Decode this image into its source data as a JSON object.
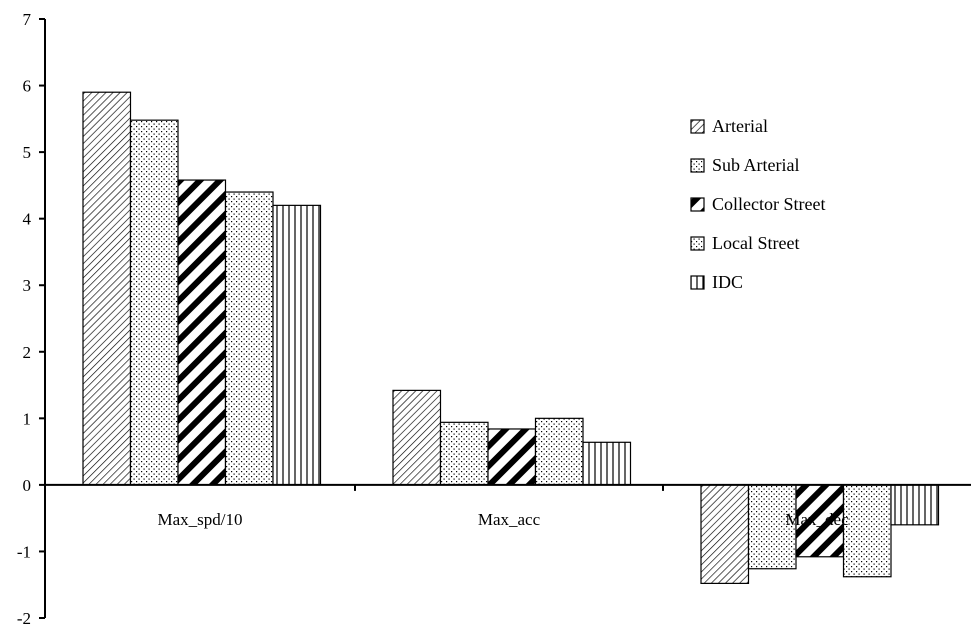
{
  "chart_data": {
    "type": "bar",
    "categories": [
      "Max_spd/10",
      "Max_acc",
      "Max_dec"
    ],
    "series": [
      {
        "name": "Arterial",
        "values": [
          5.9,
          1.42,
          -1.48
        ],
        "pattern": "diag-right"
      },
      {
        "name": "Sub Arterial",
        "values": [
          5.48,
          0.94,
          -1.26
        ],
        "pattern": "dots"
      },
      {
        "name": "Collector Street",
        "values": [
          4.58,
          0.84,
          -1.08
        ],
        "pattern": "thick-diag"
      },
      {
        "name": "Local Street",
        "values": [
          4.4,
          1.0,
          -1.38
        ],
        "pattern": "dots"
      },
      {
        "name": "IDC",
        "values": [
          4.2,
          0.64,
          -0.6
        ],
        "pattern": "vertical"
      }
    ],
    "yticks": [
      "-2",
      "-1",
      "0",
      "1",
      "2",
      "3",
      "4",
      "5",
      "6",
      "7"
    ],
    "ylim": [
      -2,
      7
    ],
    "grid": false,
    "legend_position": "top-right",
    "colors": {
      "ink": "#000000",
      "background": "#ffffff"
    }
  }
}
